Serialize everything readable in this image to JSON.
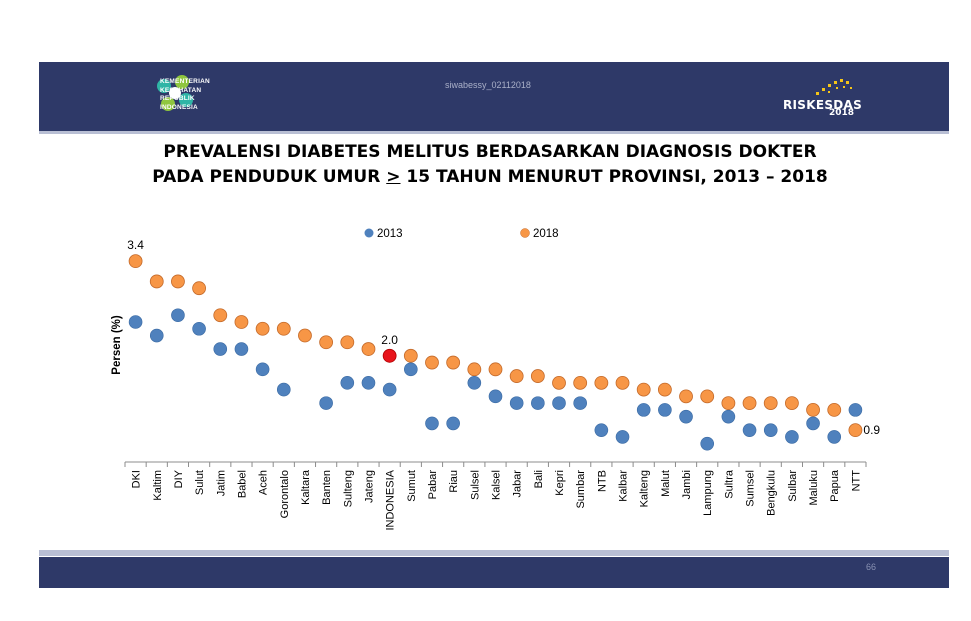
{
  "header": {
    "org_lines": [
      "KEMENTERIAN",
      "KESEHATAN",
      "REPUBLIK",
      "INDONESIA"
    ],
    "watermark": "siwabessy_02112018",
    "brand": "RISKESDAS",
    "brand_year": "2018"
  },
  "title": {
    "line1": "PREVALENSI DIABETES MELITUS BERDASARKAN DIAGNOSIS DOKTER",
    "line2_pre": "PADA PENDUDUK UMUR ",
    "line2_ge": ">",
    "line2_post": " 15 TAHUN MENURUT PROVINSI, 2013 – 2018"
  },
  "footer": {
    "page_number": "66"
  },
  "colors": {
    "navy": "#2e3968",
    "series_2013": "#4f81bd",
    "series_2018": "#f79646",
    "highlight": "#e8141b"
  },
  "chart_data": {
    "type": "scatter",
    "title": "PREVALENSI DIABETES MELITUS BERDASARKAN DIAGNOSIS DOKTER PADA PENDUDUK UMUR > 15 TAHUN MENURUT PROVINSI, 2013 – 2018",
    "ylabel": "Persen (%)",
    "xlabel": "",
    "ylim": [
      0,
      3.7
    ],
    "grid": false,
    "legend_position": "top",
    "categories": [
      "DKI",
      "Kaltim",
      "DIY",
      "Sulut",
      "Jatim",
      "Babel",
      "Aceh",
      "Gorontalo",
      "Kaltara",
      "Banten",
      "Sulteng",
      "Jateng",
      "INDONESIA",
      "Sumut",
      "Pabar",
      "Riau",
      "Sulsel",
      "Kalsel",
      "Jabar",
      "Bali",
      "Kepri",
      "Sumbar",
      "NTB",
      "Kalbar",
      "Kalteng",
      "Malut",
      "Jambi",
      "Lampung",
      "Sultra",
      "Sumsel",
      "Bengkulu",
      "Sulbar",
      "Maluku",
      "Papua",
      "NTT"
    ],
    "highlight_category": "INDONESIA",
    "series": [
      {
        "name": "2013",
        "values": [
          2.5,
          2.3,
          2.6,
          2.4,
          2.1,
          2.1,
          1.8,
          1.5,
          null,
          1.3,
          1.6,
          1.6,
          1.5,
          1.8,
          1.0,
          1.0,
          1.6,
          1.4,
          1.3,
          1.3,
          1.3,
          1.3,
          0.9,
          0.8,
          1.2,
          1.2,
          1.1,
          0.7,
          1.1,
          0.9,
          0.9,
          0.8,
          1.0,
          0.8,
          1.2
        ]
      },
      {
        "name": "2018",
        "values": [
          3.4,
          3.1,
          3.1,
          3.0,
          2.6,
          2.5,
          2.4,
          2.4,
          2.3,
          2.2,
          2.2,
          2.1,
          2.0,
          2.0,
          1.9,
          1.9,
          1.8,
          1.8,
          1.7,
          1.7,
          1.6,
          1.6,
          1.6,
          1.6,
          1.5,
          1.5,
          1.4,
          1.4,
          1.3,
          1.3,
          1.3,
          1.3,
          1.2,
          1.2,
          0.9
        ]
      }
    ],
    "annotations": [
      {
        "category": "DKI",
        "series": "2018",
        "text": "3.4"
      },
      {
        "category": "INDONESIA",
        "series": "2018",
        "text": "2.0"
      },
      {
        "category": "NTT",
        "series": "2018",
        "text": "0.9"
      }
    ]
  }
}
